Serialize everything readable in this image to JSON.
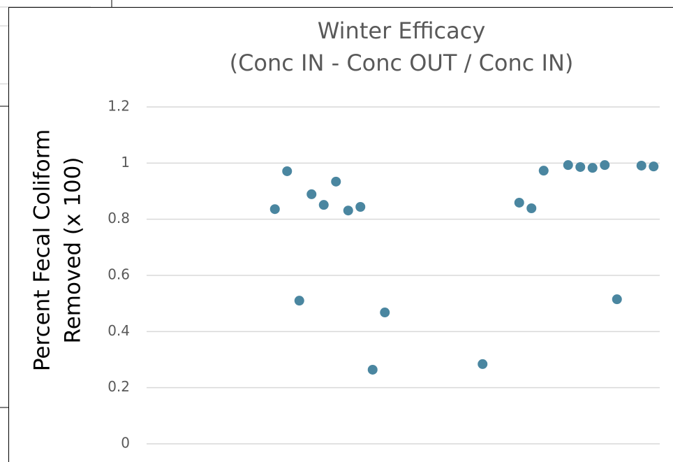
{
  "chart_data": {
    "type": "scatter",
    "title": [
      "Winter Efficacy",
      "(Conc IN - Conc OUT / Conc IN)"
    ],
    "y_label": [
      "Percent Fecal Coliform",
      "Removed (x 100)"
    ],
    "categories": [
      null,
      null,
      null,
      null,
      null,
      null,
      null,
      null,
      null,
      null,
      null,
      null,
      null,
      null,
      null,
      null,
      null,
      null,
      null,
      null,
      null,
      null,
      null,
      null,
      null,
      null,
      null,
      null,
      null,
      null,
      null,
      null,
      null,
      null,
      null,
      null,
      null,
      null,
      null,
      null,
      null,
      null
    ],
    "values": [
      null,
      null,
      null,
      null,
      null,
      null,
      null,
      null,
      null,
      null,
      0.836,
      0.971,
      0.51,
      0.889,
      0.851,
      0.934,
      0.831,
      0.844,
      0.264,
      0.468,
      null,
      null,
      null,
      null,
      null,
      null,
      null,
      0.284,
      null,
      null,
      0.859,
      0.839,
      0.973,
      null,
      0.993,
      0.986,
      0.983,
      0.993,
      0.515,
      null,
      0.991,
      0.988
    ],
    "color": "#4a86a0",
    "ylim": [
      0,
      1.2
    ],
    "yticks": [
      0,
      0.2,
      0.4,
      0.6,
      0.8,
      1,
      1.2
    ],
    "grid": true
  }
}
